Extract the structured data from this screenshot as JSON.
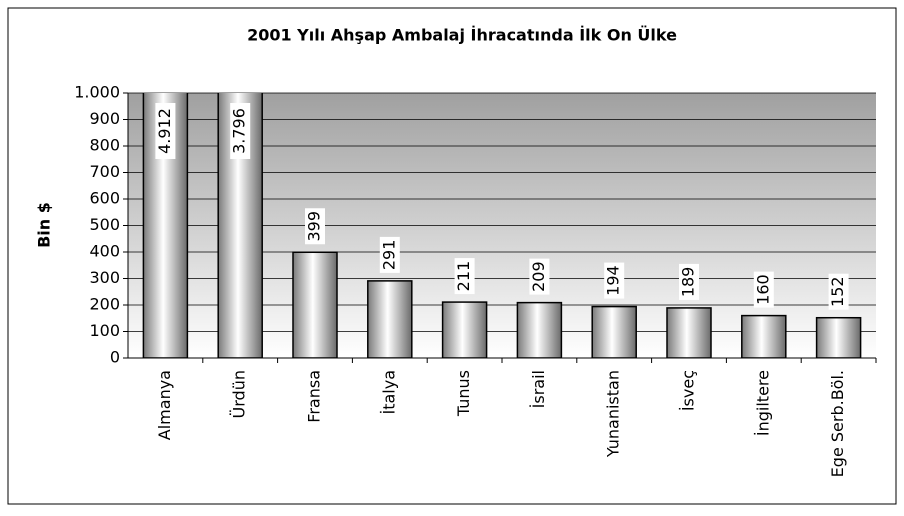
{
  "chart_data": {
    "type": "bar",
    "title": "2001 Yılı Ahşap Ambalaj İhracatında İlk On Ülke",
    "y_label": "Bin $",
    "categories": [
      "Almanya",
      "Ürdün",
      "Fransa",
      "İtalya",
      "Tunus",
      "İsrail",
      "Yunanistan",
      "İsveç",
      "İngiltere",
      "Ege Serb.Böl."
    ],
    "values": [
      4912,
      3796,
      399,
      291,
      211,
      209,
      194,
      189,
      160,
      152
    ],
    "value_labels": [
      "4.912",
      "3.796",
      "399",
      "291",
      "211",
      "209",
      "194",
      "189",
      "160",
      "152"
    ],
    "color": "#c0c0c0",
    "ylim": [
      0,
      1000
    ],
    "yticks": [
      0,
      100,
      200,
      300,
      400,
      500,
      600,
      700,
      800,
      900,
      {
        "value": 1000,
        "label": "1.000"
      }
    ],
    "grid": true
  }
}
